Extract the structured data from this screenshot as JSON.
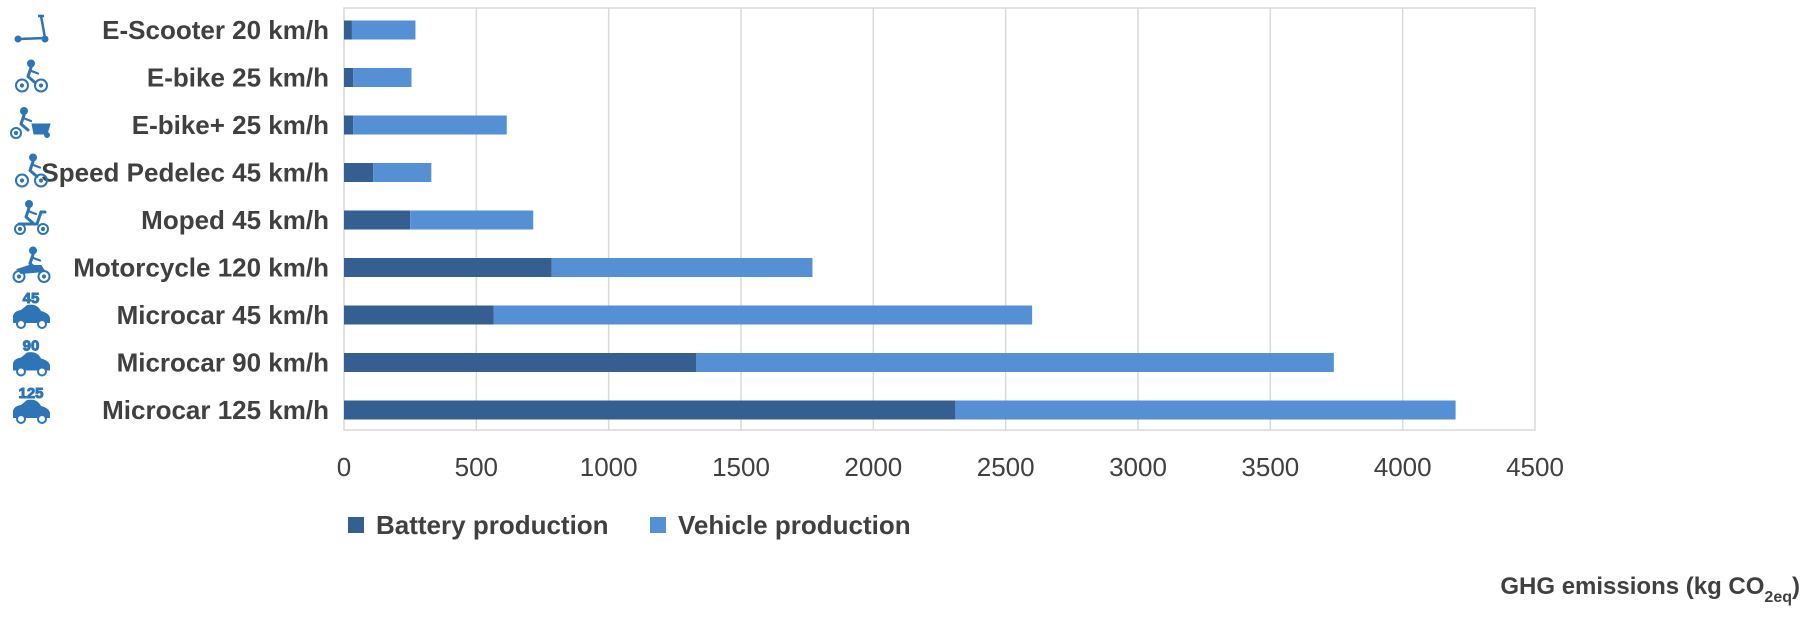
{
  "chart_data": {
    "type": "bar",
    "orientation": "horizontal",
    "stacked": true,
    "categories": [
      "E-Scooter 20 km/h",
      "E-bike 25 km/h",
      "E-bike+ 25 km/h",
      "Speed Pedelec 45 km/h",
      "Moped 45 km/h",
      "Motorcycle 120 km/h",
      "Microcar 45 km/h",
      "Microcar 90 km/h",
      "Microcar 125 km/h"
    ],
    "category_icons": [
      "e-scooter-icon",
      "e-bike-icon",
      "cargo-e-bike-icon",
      "speed-pedelec-icon",
      "moped-icon",
      "motorcycle-icon",
      "microcar-icon",
      "microcar-icon",
      "microcar-icon"
    ],
    "icon_badges": [
      "",
      "",
      "",
      "",
      "",
      "",
      "45",
      "90",
      "125"
    ],
    "series": [
      {
        "name": "Battery production",
        "color": "#355f91",
        "values": [
          30,
          35,
          35,
          110,
          250,
          785,
          565,
          1330,
          2310
        ]
      },
      {
        "name": "Vehicle production",
        "color": "#5590d5",
        "values": [
          240,
          220,
          580,
          220,
          465,
          985,
          2035,
          2410,
          1890
        ]
      }
    ],
    "xlim": [
      0,
      4500
    ],
    "x_ticks": [
      0,
      500,
      1000,
      1500,
      2000,
      2500,
      3000,
      3500,
      4000,
      4500
    ],
    "xlabel": {
      "prefix": "GHG emissions (kg CO",
      "subscript": "2eq",
      "suffix": ")"
    },
    "ylabel": "",
    "grid": "vertical",
    "legend_position": "bottom-left"
  }
}
